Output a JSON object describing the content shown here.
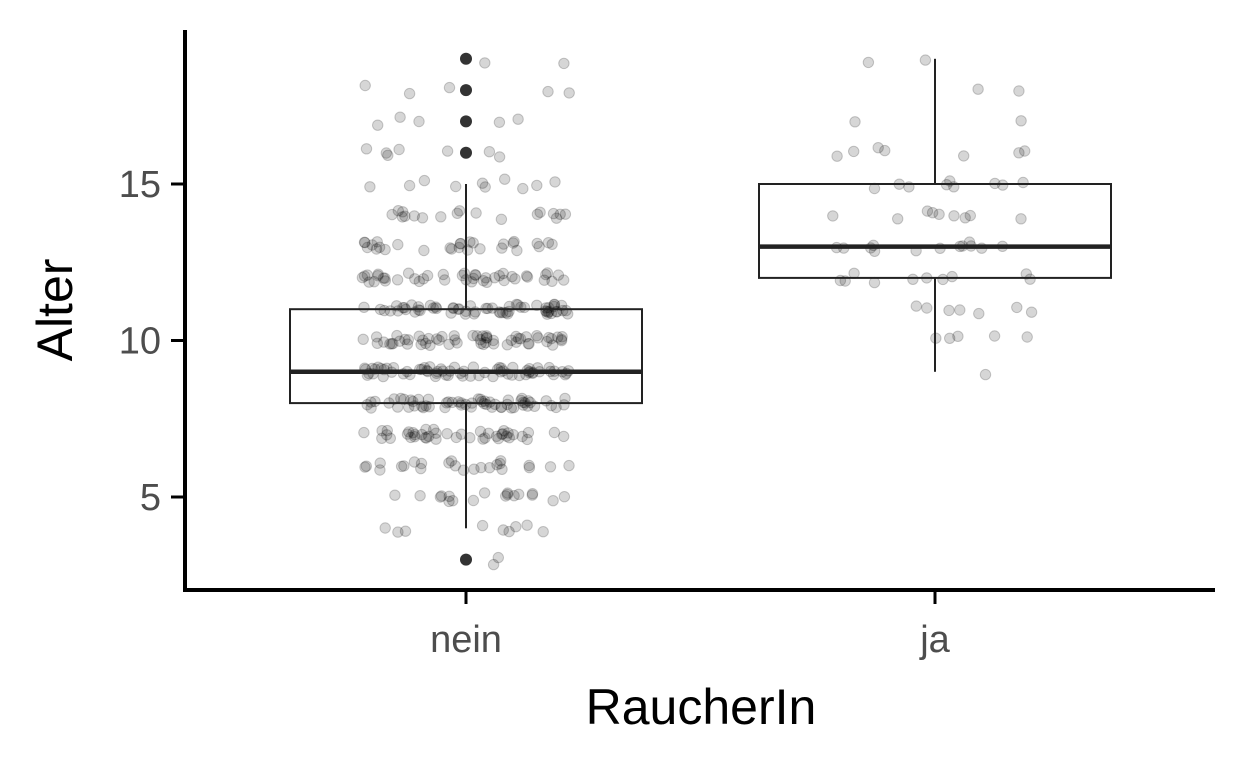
{
  "chart_data": {
    "type": "boxplot",
    "xlabel": "RaucherIn",
    "ylabel": "Alter",
    "categories": [
      "nein",
      "ja"
    ],
    "ylim": [
      2.8,
      19.8
    ],
    "yticks": [
      5,
      10,
      15
    ],
    "grid": false,
    "legend": "none",
    "boxes": [
      {
        "category": "nein",
        "lower_whisker": 4,
        "q1": 8,
        "median": 9,
        "q3": 11,
        "upper_whisker": 15,
        "outliers": [
          3,
          16,
          17,
          18,
          19
        ]
      },
      {
        "category": "ja",
        "lower_whisker": 9,
        "q1": 12,
        "median": 13,
        "q3": 15,
        "upper_whisker": 19,
        "outliers": []
      }
    ],
    "jitter_points": [
      {
        "category": "nein",
        "counts": {
          "3": 2,
          "4": 9,
          "5": 18,
          "6": 24,
          "7": 42,
          "8": 58,
          "9": 66,
          "10": 56,
          "11": 60,
          "12": 42,
          "13": 28,
          "14": 18,
          "15": 10,
          "16": 7,
          "17": 5,
          "18": 5,
          "19": 2
        }
      },
      {
        "category": "ja",
        "counts": {
          "9": 1,
          "10": 5,
          "11": 7,
          "12": 10,
          "13": 13,
          "14": 9,
          "15": 9,
          "16": 7,
          "17": 2,
          "18": 2,
          "19": 2
        }
      }
    ],
    "colors": {
      "points": "#000000",
      "box": "#222222",
      "axis": "#000000",
      "tick_label": "#4d4d4d"
    }
  }
}
